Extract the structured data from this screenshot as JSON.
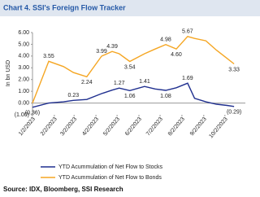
{
  "chart_data": {
    "type": "line",
    "title": "Chart 4. SSI's Foreign Flow Tracker",
    "y_label": "In bn USD",
    "source": "Source: IDX, Bloomberg, SSI Research",
    "x": [
      "1/2/2023",
      "1/25/2023",
      "2/15/2023",
      "3/1/2023",
      "3/20/2023",
      "4/10/2023",
      "4/25/2023",
      "5/5/2023",
      "5/20/2023",
      "6/10/2023",
      "6/25/2023",
      "7/10/2023",
      "7/25/2023",
      "8/10/2023",
      "8/20/2023",
      "9/5/2023",
      "9/20/2023",
      "10/5/2023",
      "10/15/2023"
    ],
    "xlim": [
      "1/2/2023",
      "10/31/2023"
    ],
    "xticks": [
      "1/2/2023",
      "2/2/2023",
      "3/2/2023",
      "4/2/2023",
      "5/2/2023",
      "6/2/2023",
      "7/2/2023",
      "8/2/2023",
      "9/2/2023",
      "10/2/2023"
    ],
    "ylim": [
      -1,
      6
    ],
    "yticks": [
      {
        "value": 6,
        "label": "6.00"
      },
      {
        "value": 5,
        "label": "5.00"
      },
      {
        "value": 4,
        "label": "4.00"
      },
      {
        "value": 3,
        "label": "3.00"
      },
      {
        "value": 2,
        "label": "2.00"
      },
      {
        "value": 1,
        "label": "1.00"
      },
      {
        "value": 0,
        "label": "0.00"
      },
      {
        "value": -1,
        "label": "(1.00)"
      }
    ],
    "series": [
      {
        "name": "YTD Acummulation of Net Flow to Stocks",
        "color": "#1f2f8f",
        "values": [
          -0.36,
          0.0,
          0.1,
          0.23,
          0.3,
          0.8,
          1.1,
          1.27,
          1.06,
          1.41,
          1.2,
          1.08,
          1.3,
          1.69,
          0.4,
          0.1,
          -0.1,
          -0.2,
          -0.29
        ],
        "value_labels": [
          "(0.36)",
          null,
          null,
          "0.23",
          null,
          null,
          null,
          "1.27",
          "1.06",
          "1.41",
          null,
          "1.08",
          null,
          "1.69",
          null,
          null,
          null,
          null,
          "(0.29)"
        ]
      },
      {
        "name": "YTD Acummulation of Net Flow to Bonds",
        "color": "#f5a623",
        "values": [
          0.0,
          3.55,
          3.1,
          2.6,
          2.24,
          3.99,
          4.39,
          4.2,
          3.54,
          4.2,
          4.6,
          4.98,
          4.6,
          5.67,
          5.5,
          5.3,
          4.5,
          3.8,
          3.33
        ],
        "value_labels": [
          null,
          "3.55",
          null,
          null,
          "2.24",
          "3.99",
          "4.39",
          null,
          "3.54",
          null,
          null,
          "4.98",
          "4.60",
          "5.67",
          null,
          null,
          null,
          null,
          "3.33"
        ]
      }
    ]
  }
}
